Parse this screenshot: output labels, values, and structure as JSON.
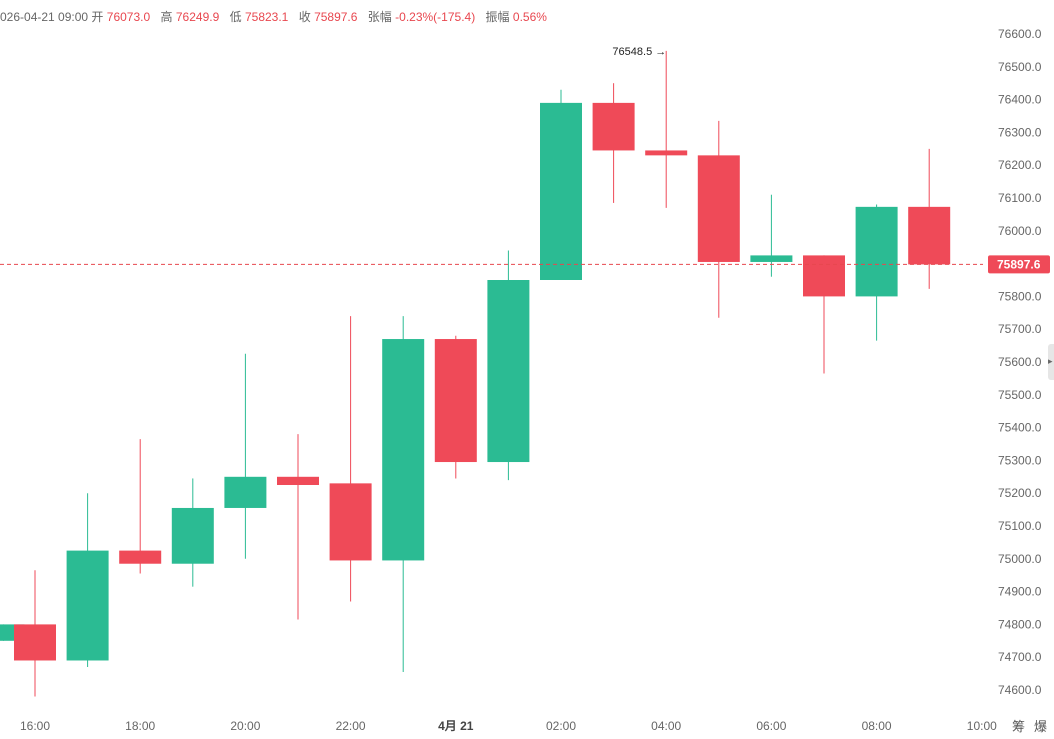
{
  "info": {
    "datetime": "026-04-21 09:00",
    "open_label": "开",
    "open": "76073.0",
    "high_label": "高",
    "high": "76249.9",
    "low_label": "低",
    "low": "75823.1",
    "close_label": "收",
    "close": "75897.6",
    "change_label": "张幅",
    "change": "-0.23%(-175.4)",
    "amplitude_label": "振幅",
    "amplitude": "0.56%"
  },
  "current_price_label": "75897.6",
  "max_annotation": "76548.5",
  "bottom_right_labels": [
    "筹",
    "爆"
  ],
  "colors": {
    "up": "#2bbb93",
    "down": "#ef4a58",
    "axis_text": "#666666",
    "price_line": "#e8474f"
  },
  "chart_data": {
    "type": "candlestick",
    "title": "",
    "xlabel": "",
    "ylabel": "",
    "ylim": [
      74550,
      76660
    ],
    "y_ticks": [
      76600.0,
      76500.0,
      76400.0,
      76300.0,
      76200.0,
      76100.0,
      76000.0,
      75900.0,
      75800.0,
      75700.0,
      75600.0,
      75500.0,
      75400.0,
      75300.0,
      75200.0,
      75100.0,
      75000.0,
      74900.0,
      74800.0,
      74700.0,
      74600.0
    ],
    "x_ticks": [
      {
        "label": "16:00",
        "slot": 0
      },
      {
        "label": "18:00",
        "slot": 2
      },
      {
        "label": "20:00",
        "slot": 4
      },
      {
        "label": "22:00",
        "slot": 6
      },
      {
        "label": "4月 21",
        "slot": 8,
        "bold": true
      },
      {
        "label": "02:00",
        "slot": 10
      },
      {
        "label": "04:00",
        "slot": 12
      },
      {
        "label": "06:00",
        "slot": 14
      },
      {
        "label": "08:00",
        "slot": 16
      },
      {
        "label": "10:00",
        "slot": 18
      }
    ],
    "candles": [
      {
        "slot": -0.6,
        "time": "15:00",
        "open": 74750,
        "high": 74800,
        "low": 74750,
        "close": 74800
      },
      {
        "slot": 0,
        "time": "16:00",
        "open": 74800,
        "high": 74965,
        "low": 74580,
        "close": 74690
      },
      {
        "slot": 1,
        "time": "17:00",
        "open": 74690,
        "high": 75200,
        "low": 74670,
        "close": 75025
      },
      {
        "slot": 2,
        "time": "18:00",
        "open": 75025,
        "high": 75365,
        "low": 74955,
        "close": 74985
      },
      {
        "slot": 3,
        "time": "19:00",
        "open": 74985,
        "high": 75245,
        "low": 74915,
        "close": 75155
      },
      {
        "slot": 4,
        "time": "20:00",
        "open": 75155,
        "high": 75625,
        "low": 75000,
        "close": 75250
      },
      {
        "slot": 5,
        "time": "21:00",
        "open": 75250,
        "high": 75380,
        "low": 74815,
        "close": 75225
      },
      {
        "slot": 6,
        "time": "22:00",
        "open": 75230,
        "high": 75740,
        "low": 74870,
        "close": 74995
      },
      {
        "slot": 7,
        "time": "23:00",
        "open": 74995,
        "high": 75740,
        "low": 74655,
        "close": 75670
      },
      {
        "slot": 8,
        "time": "00:00",
        "open": 75670,
        "high": 75680,
        "low": 75245,
        "close": 75295
      },
      {
        "slot": 9,
        "time": "01:00",
        "open": 75295,
        "high": 75940,
        "low": 75240,
        "close": 75850
      },
      {
        "slot": 10,
        "time": "02:00",
        "open": 75850,
        "high": 76430,
        "low": 75850,
        "close": 76390
      },
      {
        "slot": 11,
        "time": "03:00",
        "open": 76390,
        "high": 76450,
        "low": 76085,
        "close": 76245
      },
      {
        "slot": 12,
        "time": "04:00",
        "open": 76245,
        "high": 76548.5,
        "low": 76070,
        "close": 76230
      },
      {
        "slot": 13,
        "time": "05:00",
        "open": 76230,
        "high": 76335,
        "low": 75735,
        "close": 75905
      },
      {
        "slot": 14,
        "time": "06:00",
        "open": 75905,
        "high": 76110,
        "low": 75860,
        "close": 75925
      },
      {
        "slot": 15,
        "time": "07:00",
        "open": 75925,
        "high": 75925,
        "low": 75565,
        "close": 75800
      },
      {
        "slot": 16,
        "time": "08:00",
        "open": 75800,
        "high": 76080,
        "low": 75665,
        "close": 76073
      },
      {
        "slot": 17,
        "time": "09:00",
        "open": 76073,
        "high": 76249.9,
        "low": 75823.1,
        "close": 75897.6
      }
    ],
    "current_price": 75897.6,
    "max_value": 76548.5,
    "grid": false
  }
}
